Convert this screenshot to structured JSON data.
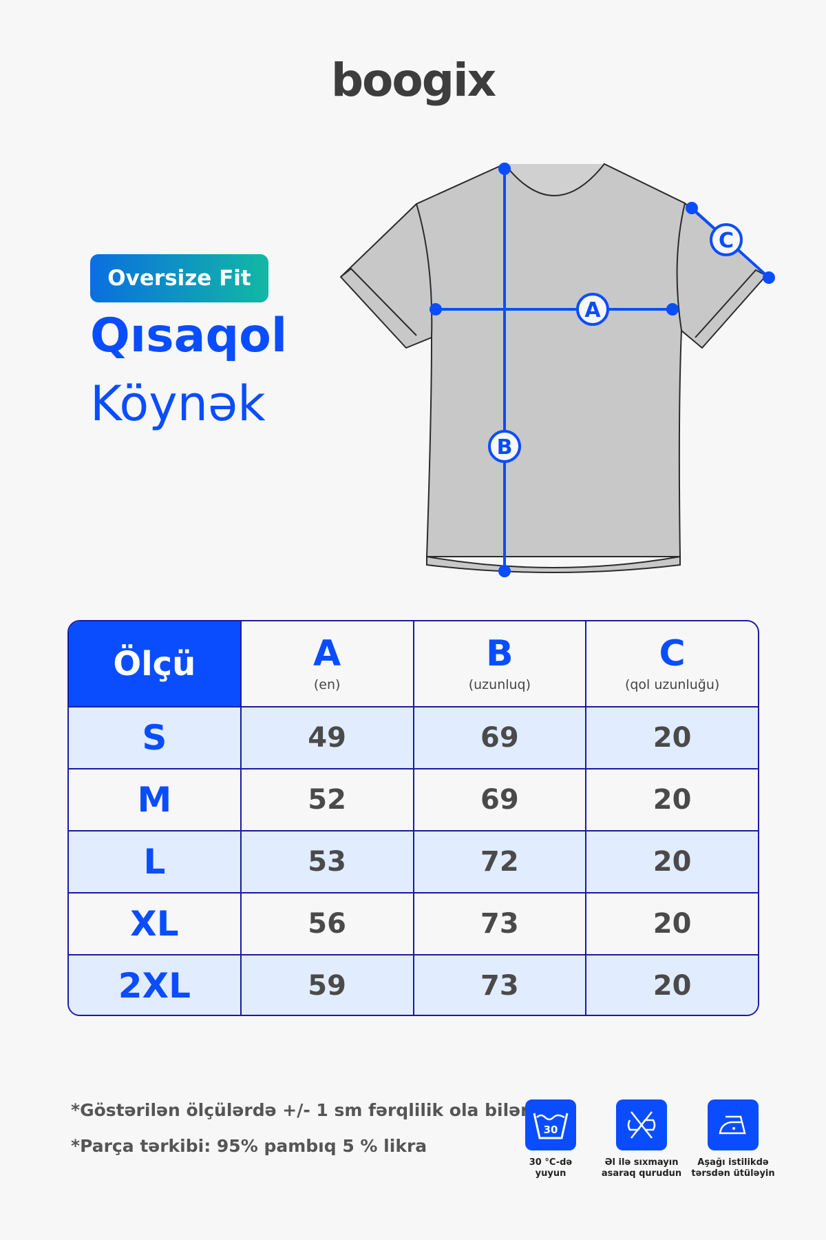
{
  "brand": "boogix",
  "badge": "Oversize Fit",
  "title_line1": "Qısaqol",
  "title_line2": "Köynək",
  "diagram": {
    "labels": [
      "A",
      "B",
      "C"
    ]
  },
  "table": {
    "header": {
      "size": "Ölçü",
      "columns": [
        {
          "letter": "A",
          "desc": "(en)"
        },
        {
          "letter": "B",
          "desc": "(uzunluq)"
        },
        {
          "letter": "C",
          "desc": "(qol uzunluğu)"
        }
      ]
    },
    "rows": [
      {
        "size": "S",
        "values": [
          "49",
          "69",
          "20"
        ]
      },
      {
        "size": "M",
        "values": [
          "52",
          "69",
          "20"
        ]
      },
      {
        "size": "L",
        "values": [
          "53",
          "72",
          "20"
        ]
      },
      {
        "size": "XL",
        "values": [
          "56",
          "73",
          "20"
        ]
      },
      {
        "size": "2XL",
        "values": [
          "59",
          "73",
          "20"
        ]
      }
    ]
  },
  "notes": [
    "*Göstərilən ölçülərdə +/- 1 sm fərqlilik ola bilər.",
    "*Parça tərkibi: 95% pambıq 5 % likra"
  ],
  "care": [
    {
      "icon": "wash-30-icon",
      "text": "30",
      "line1": "30 °C-də",
      "line2": "yuyun"
    },
    {
      "icon": "no-wring-icon",
      "line1": "Əl ilə sıxmayın",
      "line2": "asaraq qurudun"
    },
    {
      "icon": "iron-low-icon",
      "line1": "Aşağı istilikdə",
      "line2": "tərsdən ütüləyin"
    }
  ],
  "colors": {
    "accent": "#0a4dff",
    "row_alt": "#e1ecff",
    "border": "#1a1aa0"
  }
}
